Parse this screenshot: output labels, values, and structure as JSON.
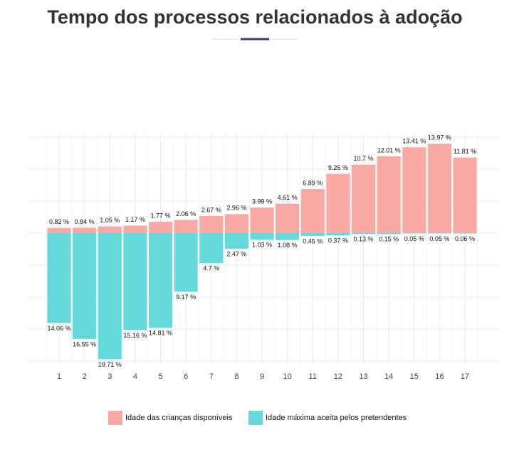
{
  "chart_data": {
    "type": "bar",
    "title": "Tempo dos processos relacionados à adoção",
    "categories": [
      "1",
      "2",
      "3",
      "4",
      "5",
      "6",
      "7",
      "8",
      "9",
      "10",
      "11",
      "12",
      "13",
      "14",
      "15",
      "16",
      "17"
    ],
    "series": [
      {
        "name": "Idade das crianças disponíveis",
        "color": "#f8a9a3",
        "direction": "up",
        "values": [
          0.82,
          0.84,
          1.05,
          1.17,
          1.77,
          2.06,
          2.67,
          2.96,
          3.99,
          4.61,
          6.89,
          9.26,
          10.7,
          12.01,
          13.41,
          13.97,
          11.81
        ],
        "value_labels": [
          "0.82 %",
          "0.84 %",
          "1.05 %",
          "1.17 %",
          "1.77 %",
          "2.06 %",
          "2.67 %",
          "2.96 %",
          "3.99 %",
          "4.61 %",
          "6.89 %",
          "9.26 %",
          "10.7 %",
          "12.01 %",
          "13.41 %",
          "13.97 %",
          "11.81 %"
        ]
      },
      {
        "name": "Idade máxima aceita pelos pretendentes",
        "color": "#66d9dc",
        "direction": "down",
        "values": [
          14.06,
          16.55,
          19.71,
          15.16,
          14.81,
          9.17,
          4.7,
          2.47,
          1.03,
          1.08,
          0.45,
          0.37,
          0.13,
          0.15,
          0.05,
          0.05,
          0.06
        ],
        "value_labels": [
          "14.06 %",
          "16.55 %",
          "19.71 %",
          "15.16 %",
          "14.81 %",
          "9.17 %",
          "4.7 %",
          "2.47 %",
          "1.03 %",
          "1.08 %",
          "0.45 %",
          "0.37 %",
          "0.13 %",
          "0.15 %",
          "0.05 %",
          "0.05 %",
          "0.06 %"
        ]
      }
    ],
    "ylim": [
      -20.5,
      15.5
    ],
    "grid_lines": [
      -20,
      -15,
      -10,
      -5,
      0,
      5,
      10,
      15
    ],
    "grid": true
  }
}
